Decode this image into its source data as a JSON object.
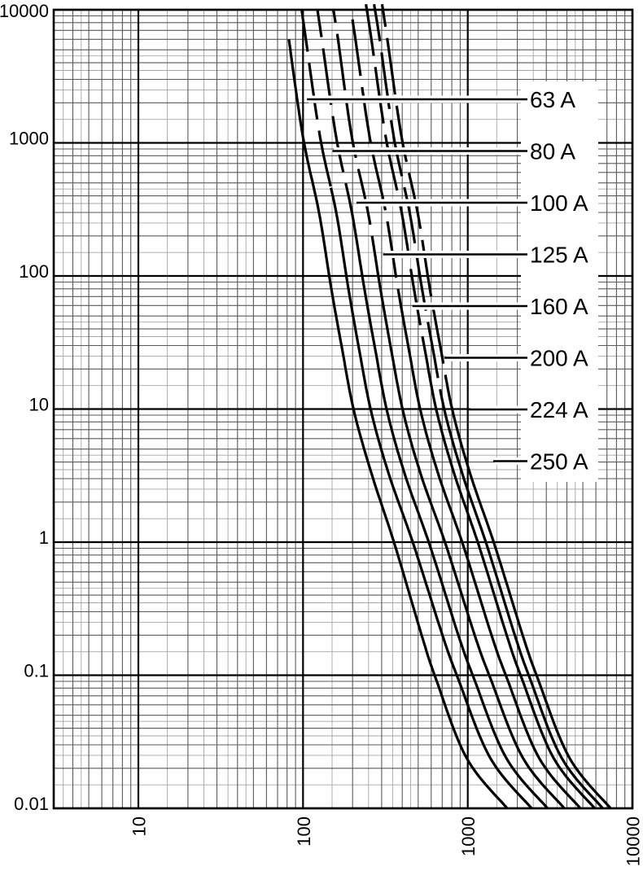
{
  "chart_data": {
    "type": "line",
    "title": "",
    "description": "Time-current characteristic curves (melting time in seconds vs prospective current in amperes) for a family of fuse links on log-log graph paper",
    "x_axis": {
      "label": "",
      "unit": "A",
      "scale": "log",
      "min": 3,
      "max": 10000,
      "ticks": [
        {
          "value": 10,
          "label": "10"
        },
        {
          "value": 100,
          "label": "100"
        },
        {
          "value": 1000,
          "label": "1000"
        },
        {
          "value": 10000,
          "label": "10000"
        }
      ]
    },
    "y_axis": {
      "label": "",
      "unit": "s",
      "scale": "log",
      "min": 0.01,
      "max": 10000,
      "ticks": [
        {
          "value": 10000,
          "label": "10000"
        },
        {
          "value": 1000,
          "label": "1000"
        },
        {
          "value": 100,
          "label": "100"
        },
        {
          "value": 10,
          "label": "10"
        },
        {
          "value": 1,
          "label": "1"
        },
        {
          "value": 0.1,
          "label": "0.1"
        },
        {
          "value": 0.01,
          "label": "0.01"
        }
      ]
    },
    "grid": {
      "visible": true,
      "minor_steps": [
        1.5,
        2,
        2.5,
        3,
        3.5,
        4,
        4.5,
        5,
        6,
        7,
        8,
        9
      ]
    },
    "colors": {
      "background": "#ffffff",
      "frame": "#000000",
      "curve": "#000000",
      "grid_major": "#000000",
      "grid_mid": "#5a5a5a",
      "grid_fine": "#a6a6a6",
      "label_text": "#000000",
      "leader_line": "#000000",
      "leader_casing": "#ffffff"
    },
    "times_s": [
      11000,
      6000,
      1100,
      300,
      82,
      29,
      9.6,
      3.2,
      0.95,
      0.2,
      0.096,
      0.024,
      0.01
    ],
    "series": [
      {
        "label": "63 A",
        "rating_a": 63,
        "dash_until_s": null,
        "currents_a": [
          null,
          82,
          100,
          125,
          148,
          172,
          204,
          262,
          361,
          525,
          637,
          982,
          1735
        ]
      },
      {
        "label": "80 A",
        "rating_a": 80,
        "dash_until_s": 460,
        "currents_a": [
          97,
          104,
          127,
          159,
          188,
          218,
          259,
          333,
          470,
          702,
          869,
          1367,
          2441
        ]
      },
      {
        "label": "100 A",
        "rating_a": 100,
        "dash_until_s": 200,
        "currents_a": [
          121,
          130,
          159,
          198,
          235,
          273,
          324,
          416,
          588,
          877,
          1086,
          1709,
          3051
        ]
      },
      {
        "label": "125 A",
        "rating_a": 125,
        "dash_until_s": 86,
        "currents_a": [
          151,
          163,
          198,
          248,
          294,
          341,
          405,
          520,
          737,
          1102,
          1368,
          2158,
          3856
        ]
      },
      {
        "label": "160 A",
        "rating_a": 160,
        "dash_until_s": 37,
        "currents_a": [
          193,
          208,
          254,
          318,
          376,
          437,
          518,
          665,
          938,
          1395,
          1724,
          2706,
          4825
        ]
      },
      {
        "label": "200 A",
        "rating_a": 200,
        "dash_until_s": 17,
        "currents_a": [
          241,
          260,
          318,
          397,
          470,
          546,
          648,
          832,
          1166,
          1724,
          2120,
          3313,
          5894
        ]
      },
      {
        "label": "224 A",
        "rating_a": 224,
        "dash_until_s": 14,
        "currents_a": [
          270,
          292,
          356,
          444,
          526,
          612,
          725,
          932,
          1305,
          1931,
          2375,
          3711,
          6601
        ]
      },
      {
        "label": "250 A",
        "rating_a": 250,
        "dash_until_s": 10.4,
        "currents_a": [
          302,
          325,
          397,
          496,
          587,
          683,
          810,
          1040,
          1457,
          2155,
          2650,
          4142,
          7367
        ]
      }
    ]
  }
}
